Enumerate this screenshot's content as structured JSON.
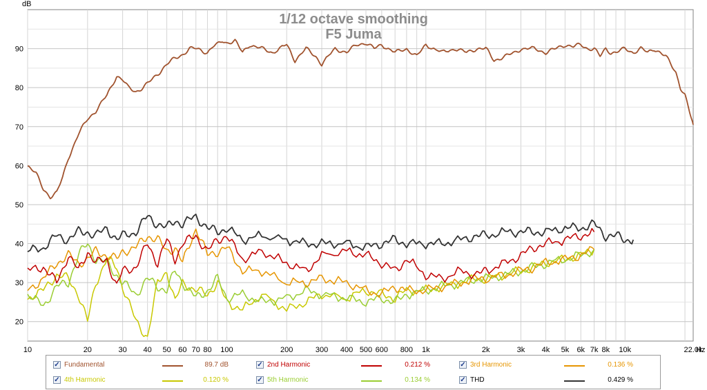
{
  "chart_data": {
    "type": "line",
    "title": "1/12 octave smoothing",
    "subtitle": "F5 Juma",
    "ylabel": "dB",
    "xunit": "Hz",
    "xscale": "log",
    "xlim": [
      10,
      22000
    ],
    "ylim": [
      15,
      100
    ],
    "grid": true,
    "yticks": [
      20,
      30,
      40,
      50,
      60,
      70,
      80,
      90
    ],
    "xticks": [
      {
        "v": 10,
        "label": "10"
      },
      {
        "v": 20,
        "label": "20"
      },
      {
        "v": 30,
        "label": "30"
      },
      {
        "v": 40,
        "label": "40"
      },
      {
        "v": 50,
        "label": "50"
      },
      {
        "v": 60,
        "label": "60"
      },
      {
        "v": 70,
        "label": "70"
      },
      {
        "v": 80,
        "label": "80"
      },
      {
        "v": 100,
        "label": "100"
      },
      {
        "v": 200,
        "label": "200"
      },
      {
        "v": 300,
        "label": "300"
      },
      {
        "v": 400,
        "label": "400"
      },
      {
        "v": 500,
        "label": "500"
      },
      {
        "v": 600,
        "label": "600"
      },
      {
        "v": 800,
        "label": "800"
      },
      {
        "v": 1000,
        "label": "1k"
      },
      {
        "v": 2000,
        "label": "2k"
      },
      {
        "v": 3000,
        "label": "3k"
      },
      {
        "v": 4000,
        "label": "4k"
      },
      {
        "v": 5000,
        "label": "5k"
      },
      {
        "v": 6000,
        "label": "6k"
      },
      {
        "v": 7000,
        "label": "7k"
      },
      {
        "v": 8000,
        "label": "8k"
      },
      {
        "v": 10000,
        "label": "10k"
      },
      {
        "v": 22000,
        "label": "22.0k"
      }
    ],
    "series": [
      {
        "name": "Fundamental",
        "value": "89.7 dB",
        "color": "#a0522d",
        "x": [
          10,
          11,
          12,
          13,
          14,
          15,
          16,
          17,
          18,
          20,
          22,
          25,
          28,
          30,
          32,
          35,
          38,
          42,
          46,
          50,
          55,
          60,
          65,
          70,
          75,
          80,
          85,
          90,
          95,
          100,
          110,
          120,
          130,
          150,
          170,
          200,
          220,
          250,
          280,
          300,
          350,
          400,
          450,
          500,
          550,
          600,
          700,
          800,
          900,
          1000,
          1200,
          1400,
          1600,
          1800,
          2000,
          2200,
          2500,
          2800,
          3000,
          3500,
          4000,
          4500,
          5000,
          5500,
          6000,
          6500,
          7000,
          7500,
          8000,
          8500,
          9000,
          10000,
          11000,
          12000,
          13000,
          14000,
          15000,
          16000,
          17000,
          18000,
          19000,
          20000,
          21000,
          22000
        ],
        "y": [
          60,
          58,
          54,
          52,
          53,
          57,
          62,
          65,
          68,
          72,
          74,
          78,
          83,
          82,
          80,
          79,
          80,
          82,
          84,
          86,
          87.5,
          88.5,
          90,
          90,
          89.5,
          89,
          90.5,
          91,
          92,
          91.5,
          92,
          89,
          91,
          90,
          89,
          91,
          87,
          90,
          88,
          86,
          90,
          89,
          91,
          91.5,
          90,
          91,
          89,
          90,
          88,
          91,
          89,
          90,
          89,
          90,
          90,
          87,
          88,
          89,
          90,
          90,
          89,
          90,
          91,
          90.5,
          91,
          90,
          90,
          88,
          90,
          89,
          89,
          90,
          89,
          90,
          89,
          90,
          89,
          88,
          86,
          84,
          80,
          78,
          74,
          70.5
        ]
      },
      {
        "name": "2nd Harmonic",
        "value": "0.212 %",
        "color": "#c00000",
        "x": [
          10,
          12,
          14,
          16,
          18,
          20,
          22,
          25,
          28,
          30,
          35,
          40,
          45,
          50,
          55,
          60,
          70,
          80,
          90,
          100,
          120,
          150,
          200,
          250,
          300,
          400,
          500,
          600,
          700,
          800,
          1000,
          1200,
          1500,
          1800,
          2000,
          2500,
          3000,
          3500,
          4000,
          5000,
          6000,
          7000
        ],
        "y": [
          33,
          34,
          30,
          37,
          33,
          38,
          35,
          36,
          29,
          33,
          34,
          40,
          35,
          41,
          36,
          40,
          42,
          38,
          41,
          42,
          36,
          38,
          35,
          33,
          37,
          38,
          37,
          35,
          33,
          36,
          32,
          31,
          33,
          32,
          33,
          35,
          37,
          39,
          40,
          41,
          42,
          43
        ]
      },
      {
        "name": "3rd Harmonic",
        "value": "0.136 %",
        "color": "#e69500",
        "x": [
          10,
          12,
          14,
          16,
          18,
          20,
          22,
          25,
          28,
          30,
          35,
          40,
          45,
          50,
          55,
          60,
          70,
          80,
          90,
          100,
          120,
          150,
          200,
          250,
          300,
          400,
          500,
          600,
          700,
          800,
          1000,
          1200,
          1500,
          1800,
          2000,
          2500,
          3000,
          3500,
          4000,
          5000,
          6000,
          7000
        ],
        "y": [
          28,
          31,
          35,
          37,
          35,
          36,
          38,
          37,
          36,
          38,
          39,
          42,
          41,
          38,
          39,
          35,
          44,
          37,
          38,
          39,
          33,
          33,
          30,
          30,
          31,
          30,
          28,
          27,
          29,
          28,
          28,
          29,
          30,
          31,
          31,
          32,
          33,
          34,
          35,
          36,
          37,
          38.5
        ]
      },
      {
        "name": "4th Harmonic",
        "value": "0.120 %",
        "color": "#c8c800",
        "x": [
          10,
          12,
          14,
          16,
          18,
          20,
          22,
          25,
          28,
          30,
          35,
          40,
          45,
          50,
          55,
          60,
          70,
          80,
          90,
          100,
          120,
          150,
          200,
          250,
          300,
          400,
          500,
          600,
          700,
          800,
          1000,
          1200,
          1500,
          1800,
          2000,
          2500,
          3000,
          3500,
          4000,
          5000,
          6000,
          7000
        ],
        "y": [
          26,
          28,
          32,
          31,
          27,
          20,
          30,
          36,
          34,
          29,
          20,
          16,
          30,
          33,
          25,
          30,
          28,
          27,
          30,
          25,
          23,
          27,
          23,
          25,
          27,
          26,
          28,
          27,
          26,
          28,
          28,
          29,
          30,
          31,
          31,
          32,
          33,
          34,
          35,
          36,
          37,
          38.5
        ]
      },
      {
        "name": "5th Harmonic",
        "value": "0.134 %",
        "color": "#9acd32",
        "x": [
          10,
          12,
          14,
          16,
          18,
          20,
          22,
          25,
          28,
          30,
          35,
          40,
          45,
          50,
          55,
          60,
          70,
          80,
          90,
          100,
          120,
          150,
          200,
          250,
          300,
          400,
          500,
          600,
          700,
          800,
          1000,
          1200,
          1500,
          1800,
          2000,
          2500,
          3000,
          3500,
          4000,
          5000,
          6000,
          7000
        ],
        "y": [
          27,
          24,
          29,
          30,
          37,
          40,
          36,
          35,
          32,
          30,
          27,
          31,
          29,
          28,
          33,
          30,
          26,
          28,
          31,
          26,
          27,
          25,
          26,
          28,
          27,
          26,
          25,
          26,
          25,
          27,
          28,
          29,
          30,
          31,
          31,
          32,
          33,
          34,
          35,
          36,
          37,
          38.5
        ]
      },
      {
        "name": "THD",
        "value": "0.429 %",
        "color": "#333333",
        "x": [
          10,
          12,
          14,
          16,
          18,
          20,
          22,
          25,
          28,
          30,
          35,
          40,
          45,
          50,
          55,
          60,
          70,
          80,
          90,
          100,
          120,
          150,
          200,
          250,
          300,
          400,
          500,
          600,
          700,
          800,
          1000,
          1200,
          1500,
          1800,
          2000,
          2500,
          3000,
          3500,
          4000,
          5000,
          6000,
          7000,
          8000,
          9000,
          10000,
          11000
        ],
        "y": [
          38,
          39,
          42,
          41,
          43,
          43,
          42,
          44,
          41,
          42,
          43,
          47,
          45,
          44,
          46,
          45,
          47,
          44,
          43,
          44,
          41,
          42,
          41,
          40,
          40,
          40,
          39,
          40,
          41,
          40,
          40,
          40,
          41,
          42,
          42,
          43,
          43,
          43,
          43,
          44,
          44,
          45,
          42,
          42,
          41,
          41
        ]
      }
    ]
  }
}
